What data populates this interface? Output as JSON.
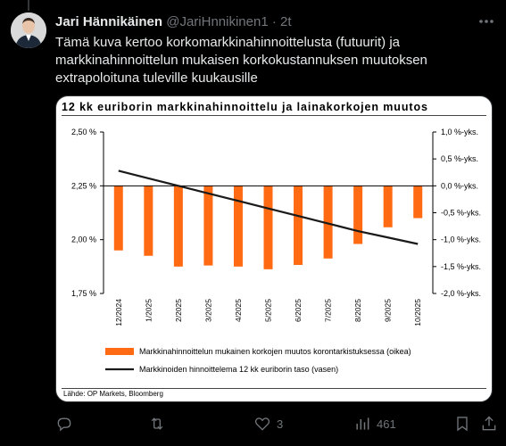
{
  "tweet": {
    "display_name": "Jari Hännikäinen",
    "handle": "@JariHnnikinen1",
    "time": "2t",
    "text": "Tämä kuva kertoo korkomarkkinahinnoittelusta (futuurit) ja\nmarkkinahinnoittelun mukaisen korkokustannuksen muutoksen\nextrapoloituna tuleville kuukausille"
  },
  "actions": {
    "reply": {
      "icon": "reply-icon",
      "count": ""
    },
    "repost": {
      "icon": "repost-icon",
      "count": ""
    },
    "like": {
      "icon": "heart-icon",
      "count": "3"
    },
    "views": {
      "icon": "views-icon",
      "count": "461"
    },
    "bookmark": {
      "icon": "bookmark-icon"
    },
    "share": {
      "icon": "share-icon"
    }
  },
  "colors": {
    "bar": "#ff6a13",
    "line": "#1a1a1a",
    "accent_text": "#e7e9ea",
    "muted": "#71767b"
  },
  "chart_data": {
    "type": "bar",
    "title": "12 kk euriborin markkinahinnoittelu ja lainakorkojen muutos",
    "source": "Lähde: OP Markets, Bloomberg",
    "categories": [
      "12/2024",
      "1/2025",
      "2/2025",
      "3/2025",
      "4/2025",
      "5/2025",
      "6/2025",
      "7/2025",
      "8/2025",
      "9/2025",
      "10/2025"
    ],
    "y_left": {
      "ticks": [
        "2,50 %",
        "2,25 %",
        "2,00 %",
        "1,75 %"
      ],
      "range": [
        1.75,
        2.5
      ]
    },
    "y_right": {
      "ticks": [
        "1,0 %-yks.",
        "0,5 %-yks.",
        "0,0 %-yks.",
        "-0,5 %-yks.",
        "-1,0 %-yks.",
        "-1,5 %-yks.",
        "-2,0 %-yks."
      ],
      "range": [
        -2.0,
        1.0
      ]
    },
    "series": [
      {
        "name": "Markkinahinnoittelun mukainen korkojen muutos korontarkistuksessa (oikea)",
        "type": "bar",
        "axis": "right",
        "values": [
          -1.2,
          -1.3,
          -1.5,
          -1.48,
          -1.5,
          -1.55,
          -1.47,
          -1.35,
          -1.08,
          -0.77,
          -0.6
        ]
      },
      {
        "name": "Markkinoiden hinnoittelema 12 kk euriborin taso (vasen)",
        "type": "line",
        "axis": "left",
        "values": [
          2.32,
          2.285,
          2.25,
          2.215,
          2.18,
          2.145,
          2.11,
          2.075,
          2.04,
          2.01,
          1.98
        ]
      }
    ],
    "grid": false,
    "legend": "bottom"
  }
}
